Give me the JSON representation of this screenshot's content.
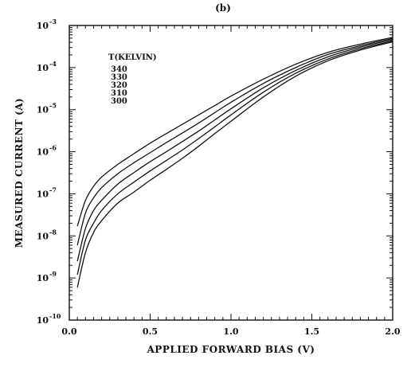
{
  "chart_data": {
    "type": "line",
    "panel_label": "(b)",
    "xlabel": "APPLIED FORWARD BIAS (V)",
    "ylabel": "MEASURED CURRENT (A)",
    "xlim": [
      0.0,
      2.0
    ],
    "ylim": [
      1e-10,
      0.001
    ],
    "yscale": "log",
    "grid": false,
    "x_ticks": [
      {
        "value": 0.0,
        "label": "0.0"
      },
      {
        "value": 0.5,
        "label": "0.5"
      },
      {
        "value": 1.0,
        "label": "1.0"
      },
      {
        "value": 1.5,
        "label": "1.5"
      },
      {
        "value": 2.0,
        "label": "2.0"
      }
    ],
    "y_ticks": [
      {
        "exp": -10,
        "label": "10"
      },
      {
        "exp": -9,
        "label": "10"
      },
      {
        "exp": -8,
        "label": "10"
      },
      {
        "exp": -7,
        "label": "10"
      },
      {
        "exp": -6,
        "label": "10"
      },
      {
        "exp": -5,
        "label": "10"
      },
      {
        "exp": -4,
        "label": "10"
      },
      {
        "exp": -3,
        "label": "10"
      }
    ],
    "y_tick_exponents": [
      "-10",
      "-9",
      "-8",
      "-7",
      "-6",
      "-5",
      "-4",
      "-3"
    ],
    "legend_title": "T(KELVIN)",
    "legend_position": "top-left",
    "x": [
      0.05,
      0.1,
      0.15,
      0.2,
      0.3,
      0.4,
      0.5,
      0.6,
      0.7,
      0.8,
      0.9,
      1.0,
      1.2,
      1.4,
      1.6,
      1.8,
      2.0
    ],
    "series": [
      {
        "name": "340",
        "values": [
          1.7e-08,
          7e-08,
          1.5e-07,
          2.5e-07,
          5e-07,
          9e-07,
          1.6e-06,
          2.7e-06,
          4.5e-06,
          7.5e-06,
          1.25e-05,
          2.1e-05,
          5.3e-05,
          0.00012,
          0.00023,
          0.00036,
          0.00052
        ]
      },
      {
        "name": "330",
        "values": [
          6e-09,
          3.5e-08,
          8e-08,
          1.4e-07,
          3e-07,
          5.5e-07,
          9.5e-07,
          1.65e-06,
          2.8e-06,
          4.8e-06,
          8.5e-06,
          1.5e-05,
          4.2e-05,
          0.0001,
          0.000205,
          0.00033,
          0.00049
        ]
      },
      {
        "name": "320",
        "values": [
          2.5e-09,
          1.5e-08,
          4e-08,
          7e-08,
          1.7e-07,
          3.2e-07,
          5.8e-07,
          1e-06,
          1.75e-06,
          3.1e-06,
          5.7e-06,
          1.05e-05,
          3.3e-05,
          8.5e-05,
          0.00018,
          0.000305,
          0.00046
        ]
      },
      {
        "name": "310",
        "values": [
          1.2e-09,
          8e-09,
          2e-08,
          4e-08,
          1e-07,
          1.9e-07,
          3.5e-07,
          6.2e-07,
          1.1e-06,
          2.05e-06,
          3.9e-06,
          7.5e-06,
          2.6e-05,
          7.3e-05,
          0.00016,
          0.00028,
          0.00043
        ]
      },
      {
        "name": "300",
        "values": [
          6e-10,
          4e-09,
          1.2e-08,
          2.3e-08,
          6e-08,
          1.1e-07,
          2.1e-07,
          3.8e-07,
          7e-07,
          1.35e-06,
          2.7e-06,
          5.3e-06,
          2e-05,
          6.2e-05,
          0.000145,
          0.00026,
          0.00041
        ]
      }
    ]
  }
}
